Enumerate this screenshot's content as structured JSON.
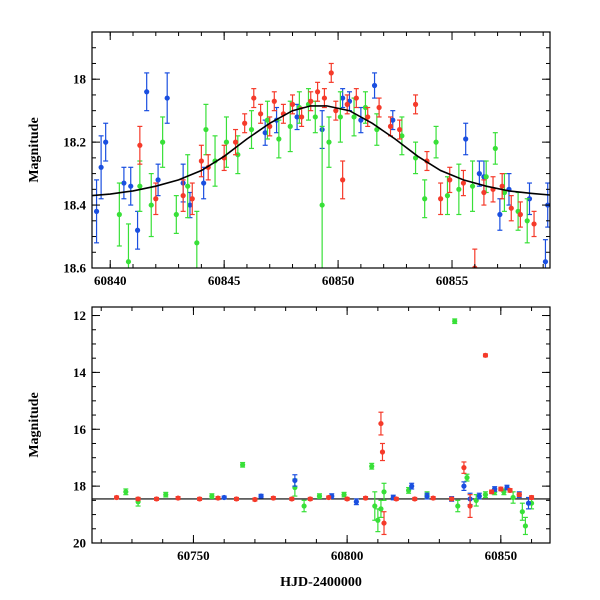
{
  "colors": {
    "blue": "#1a4fe0",
    "green": "#38e038",
    "red": "#f53a2a",
    "axis": "#000000",
    "model": "#000000"
  },
  "chart_data": [
    {
      "type": "scatter",
      "title": "",
      "xlabel": "",
      "ylabel": "Magnitude",
      "xlim": [
        60839.2,
        60859.3
      ],
      "ylim": [
        18.6,
        17.85
      ],
      "y_inverted": true,
      "xticks": [
        60840,
        60845,
        60850,
        60855
      ],
      "yticks": [
        18,
        18.2,
        18.4,
        18.6
      ],
      "xtick_labels": [
        "60840",
        "60845",
        "60850",
        "60855"
      ],
      "ytick_labels": [
        "18",
        "18.2",
        "18.4",
        "18.6"
      ],
      "grid": false,
      "legend": "none",
      "model_curve": {
        "description_shape": "gaussian-like brightening",
        "x": [
          60839.2,
          60840,
          60841,
          60842,
          60843,
          60844,
          60845,
          60846,
          60847,
          60848,
          60848.8,
          60849.5,
          60850.5,
          60851.5,
          60852.5,
          60853.5,
          60854.5,
          60855.5,
          60856.5,
          60857.5,
          60858.5,
          60859.3
        ],
        "y": [
          18.37,
          18.365,
          18.355,
          18.34,
          18.32,
          18.29,
          18.245,
          18.19,
          18.14,
          18.1,
          18.085,
          18.085,
          18.1,
          18.14,
          18.19,
          18.245,
          18.29,
          18.32,
          18.34,
          18.355,
          18.363,
          18.368
        ]
      },
      "series": [
        {
          "color_key": "blue",
          "points": [
            [
              60839.4,
              18.42,
              0.1
            ],
            [
              60839.6,
              18.28,
              0.1
            ],
            [
              60839.8,
              18.2,
              0.06
            ],
            [
              60840.6,
              18.33,
              0.05
            ],
            [
              60840.9,
              18.34,
              0.06
            ],
            [
              60841.2,
              18.48,
              0.06
            ],
            [
              60841.6,
              18.04,
              0.06
            ],
            [
              60842.1,
              18.32,
              0.05
            ],
            [
              60842.5,
              18.06,
              0.08
            ],
            [
              60843.2,
              18.33,
              0.06
            ],
            [
              60843.5,
              18.4,
              0.04
            ],
            [
              60844.1,
              18.33,
              0.05
            ],
            [
              60846.8,
              18.17,
              0.04
            ],
            [
              60847.3,
              18.13,
              0.04
            ],
            [
              60848.2,
              18.12,
              0.04
            ],
            [
              60849.3,
              18.16,
              0.06
            ],
            [
              60850.2,
              18.06,
              0.03
            ],
            [
              60850.5,
              18.07,
              0.03
            ],
            [
              60851.0,
              18.13,
              0.04
            ],
            [
              60851.6,
              18.02,
              0.04
            ],
            [
              60852.4,
              18.13,
              0.03
            ],
            [
              60855.6,
              18.19,
              0.05
            ],
            [
              60856.2,
              18.3,
              0.04
            ],
            [
              60856.4,
              18.31,
              0.05
            ],
            [
              60857.1,
              18.43,
              0.05
            ],
            [
              60857.5,
              18.35,
              0.05
            ],
            [
              60858.4,
              18.38,
              0.05
            ],
            [
              60859.1,
              18.58,
              0.07
            ],
            [
              60859.2,
              18.4,
              0.07
            ]
          ]
        },
        {
          "color_key": "green",
          "points": [
            [
              60840.4,
              18.43,
              0.1
            ],
            [
              60840.8,
              18.58,
              0.12
            ],
            [
              60841.3,
              18.34,
              0.08
            ],
            [
              60841.8,
              18.4,
              0.1
            ],
            [
              60842.3,
              18.2,
              0.08
            ],
            [
              60842.9,
              18.43,
              0.06
            ],
            [
              60843.4,
              18.34,
              0.1
            ],
            [
              60843.8,
              18.52,
              0.1
            ],
            [
              60844.2,
              18.16,
              0.08
            ],
            [
              60844.6,
              18.26,
              0.08
            ],
            [
              60845.1,
              18.2,
              0.08
            ],
            [
              60845.6,
              18.24,
              0.06
            ],
            [
              60846.2,
              18.16,
              0.06
            ],
            [
              60846.9,
              18.13,
              0.06
            ],
            [
              60847.4,
              18.19,
              0.06
            ],
            [
              60847.9,
              18.15,
              0.08
            ],
            [
              60848.3,
              18.09,
              0.05
            ],
            [
              60848.7,
              18.08,
              0.05
            ],
            [
              60849.0,
              18.12,
              0.05
            ],
            [
              60849.3,
              18.4,
              0.25
            ],
            [
              60849.6,
              18.2,
              0.08
            ],
            [
              60850.1,
              18.12,
              0.08
            ],
            [
              60850.7,
              18.12,
              0.06
            ],
            [
              60851.2,
              18.09,
              0.05
            ],
            [
              60851.7,
              18.16,
              0.05
            ],
            [
              60852.8,
              18.18,
              0.06
            ],
            [
              60853.4,
              18.25,
              0.05
            ],
            [
              60853.8,
              18.38,
              0.06
            ],
            [
              60854.3,
              18.2,
              0.05
            ],
            [
              60854.8,
              18.37,
              0.06
            ],
            [
              60855.3,
              18.35,
              0.08
            ],
            [
              60855.9,
              18.34,
              0.08
            ],
            [
              60856.5,
              18.31,
              0.05
            ],
            [
              60856.9,
              18.22,
              0.05
            ],
            [
              60857.3,
              18.36,
              0.06
            ],
            [
              60857.9,
              18.42,
              0.06
            ],
            [
              60858.3,
              18.45,
              0.07
            ]
          ]
        },
        {
          "color_key": "red",
          "points": [
            [
              60841.3,
              18.21,
              0.06
            ],
            [
              60842.0,
              18.38,
              0.05
            ],
            [
              60843.2,
              18.37,
              0.05
            ],
            [
              60843.6,
              18.38,
              0.05
            ],
            [
              60844.0,
              18.26,
              0.05
            ],
            [
              60844.3,
              18.28,
              0.04
            ],
            [
              60845.0,
              18.25,
              0.04
            ],
            [
              60845.5,
              18.2,
              0.04
            ],
            [
              60845.9,
              18.14,
              0.03
            ],
            [
              60846.3,
              18.06,
              0.03
            ],
            [
              60846.6,
              18.11,
              0.03
            ],
            [
              60847.0,
              18.15,
              0.03
            ],
            [
              60847.2,
              18.07,
              0.03
            ],
            [
              60847.6,
              18.11,
              0.03
            ],
            [
              60848.0,
              18.08,
              0.03
            ],
            [
              60848.4,
              18.12,
              0.03
            ],
            [
              60848.8,
              18.07,
              0.03
            ],
            [
              60849.1,
              18.04,
              0.03
            ],
            [
              60849.4,
              18.06,
              0.03
            ],
            [
              60849.7,
              17.98,
              0.03
            ],
            [
              60849.9,
              18.1,
              0.03
            ],
            [
              60850.2,
              18.32,
              0.06
            ],
            [
              60850.4,
              18.08,
              0.03
            ],
            [
              60850.8,
              18.06,
              0.03
            ],
            [
              60851.3,
              18.12,
              0.03
            ],
            [
              60851.8,
              18.09,
              0.03
            ],
            [
              60852.3,
              18.15,
              0.03
            ],
            [
              60852.7,
              18.16,
              0.03
            ],
            [
              60853.4,
              18.08,
              0.03
            ],
            [
              60853.9,
              18.26,
              0.03
            ],
            [
              60854.5,
              18.38,
              0.05
            ],
            [
              60854.9,
              18.32,
              0.04
            ],
            [
              60855.5,
              18.33,
              0.04
            ],
            [
              60856.0,
              18.6,
              0.06
            ],
            [
              60856.4,
              18.36,
              0.04
            ],
            [
              60856.8,
              18.35,
              0.04
            ],
            [
              60857.2,
              18.34,
              0.04
            ],
            [
              60857.6,
              18.41,
              0.04
            ],
            [
              60858.0,
              18.43,
              0.04
            ],
            [
              60858.6,
              18.46,
              0.04
            ]
          ]
        }
      ]
    },
    {
      "type": "scatter",
      "title": "",
      "xlabel": "HJD-2400000",
      "ylabel": "Magnitude",
      "xlim": [
        60717,
        60866
      ],
      "ylim": [
        20,
        11.7
      ],
      "y_inverted": true,
      "xticks": [
        60750,
        60800,
        60850
      ],
      "yticks": [
        12,
        14,
        16,
        18,
        20
      ],
      "xtick_labels": [
        "60750",
        "60800",
        "60850"
      ],
      "ytick_labels": [
        "12",
        "14",
        "16",
        "18",
        "20"
      ],
      "grid": false,
      "legend": "none",
      "reference_line": {
        "y": 18.45
      },
      "series": [
        {
          "color_key": "green",
          "points": [
            [
              60728,
              18.2,
              0.1
            ],
            [
              60732,
              18.55,
              0.15
            ],
            [
              60741,
              18.3,
              0.08
            ],
            [
              60756,
              18.35,
              0.08
            ],
            [
              60766,
              17.25,
              0.08
            ],
            [
              60783,
              18.05,
              0.3
            ],
            [
              60786,
              18.7,
              0.2
            ],
            [
              60791,
              18.35,
              0.08
            ],
            [
              60799,
              18.3,
              0.08
            ],
            [
              60808,
              17.3,
              0.1
            ],
            [
              60809,
              18.7,
              0.5
            ],
            [
              60810,
              19.2,
              0.4
            ],
            [
              60811,
              18.8,
              0.3
            ],
            [
              60812,
              18.2,
              0.3
            ],
            [
              60820,
              18.15,
              0.1
            ],
            [
              60826,
              18.3,
              0.1
            ],
            [
              60835,
              12.2,
              0.08
            ],
            [
              60836,
              18.7,
              0.2
            ],
            [
              60839,
              17.7,
              0.12
            ],
            [
              60842,
              18.5,
              0.2
            ],
            [
              60845,
              18.3,
              0.1
            ],
            [
              60848,
              18.2,
              0.1
            ],
            [
              60851,
              18.2,
              0.1
            ],
            [
              60854,
              18.4,
              0.2
            ],
            [
              60857,
              18.9,
              0.3
            ],
            [
              60858,
              19.4,
              0.3
            ],
            [
              60860,
              18.6,
              0.2
            ]
          ]
        },
        {
          "color_key": "blue",
          "points": [
            [
              60760,
              18.4,
              0.05
            ],
            [
              60772,
              18.35,
              0.06
            ],
            [
              60783,
              17.8,
              0.2
            ],
            [
              60795,
              18.35,
              0.08
            ],
            [
              60803,
              18.55,
              0.1
            ],
            [
              60815,
              18.4,
              0.08
            ],
            [
              60821,
              18.0,
              0.1
            ],
            [
              60826,
              18.35,
              0.1
            ],
            [
              60834,
              18.45,
              0.08
            ],
            [
              60838,
              18.0,
              0.15
            ],
            [
              60840,
              18.45,
              0.2
            ],
            [
              60843,
              18.35,
              0.1
            ],
            [
              60848,
              18.1,
              0.08
            ],
            [
              60852,
              18.05,
              0.08
            ],
            [
              60856,
              18.3,
              0.1
            ],
            [
              60859,
              18.6,
              0.2
            ]
          ]
        },
        {
          "color_key": "red",
          "points": [
            [
              60725,
              18.4,
              0.05
            ],
            [
              60732,
              18.45,
              0.05
            ],
            [
              60738,
              18.45,
              0.05
            ],
            [
              60745,
              18.42,
              0.05
            ],
            [
              60752,
              18.45,
              0.05
            ],
            [
              60758,
              18.42,
              0.05
            ],
            [
              60764,
              18.45,
              0.05
            ],
            [
              60770,
              18.47,
              0.05
            ],
            [
              60776,
              18.42,
              0.05
            ],
            [
              60782,
              18.45,
              0.05
            ],
            [
              60788,
              18.45,
              0.05
            ],
            [
              60794,
              18.4,
              0.05
            ],
            [
              60800,
              18.45,
              0.05
            ],
            [
              60806,
              18.42,
              0.05
            ],
            [
              60811,
              15.8,
              0.4
            ],
            [
              60811.5,
              16.8,
              0.3
            ],
            [
              60812,
              19.3,
              0.4
            ],
            [
              60816,
              18.45,
              0.05
            ],
            [
              60822,
              18.45,
              0.05
            ],
            [
              60828,
              18.42,
              0.05
            ],
            [
              60834,
              18.45,
              0.05
            ],
            [
              60838,
              17.35,
              0.2
            ],
            [
              60840,
              18.7,
              0.4
            ],
            [
              60845,
              13.4,
              0.05
            ],
            [
              60847,
              18.2,
              0.06
            ],
            [
              60850,
              18.1,
              0.06
            ],
            [
              60853,
              18.15,
              0.06
            ],
            [
              60856,
              18.3,
              0.06
            ],
            [
              60860,
              18.4,
              0.06
            ]
          ]
        }
      ]
    }
  ]
}
